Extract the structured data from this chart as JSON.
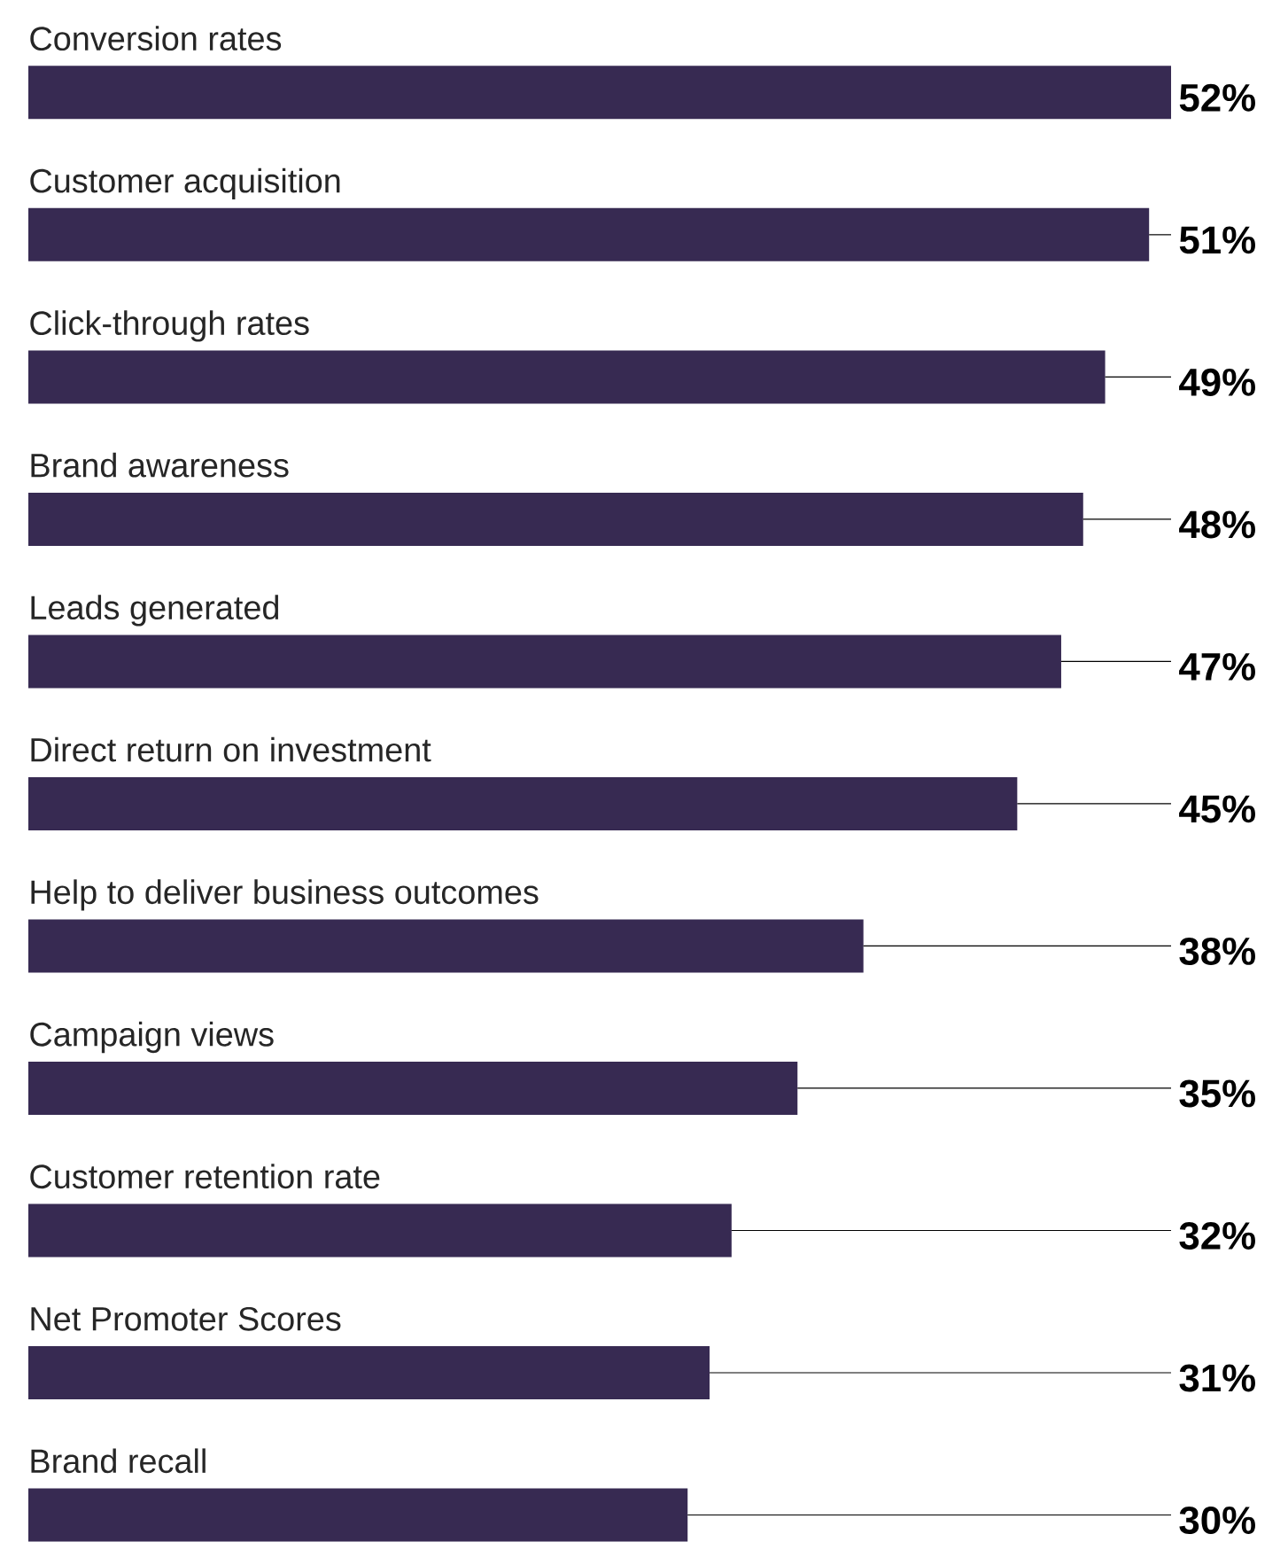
{
  "chart_data": {
    "type": "bar",
    "orientation": "horizontal",
    "color": "#372a52",
    "categories": [
      "Conversion rates",
      "Customer acquisition",
      "Click-through rates",
      "Brand awareness",
      "Leads generated",
      "Direct return on investment",
      "Help to deliver business outcomes",
      "Campaign views",
      "Customer retention rate",
      "Net Promoter Scores",
      "Brand recall"
    ],
    "values": [
      52,
      51,
      49,
      48,
      47,
      45,
      38,
      35,
      32,
      31,
      30
    ],
    "value_labels": [
      "52%",
      "51%",
      "49%",
      "48%",
      "47%",
      "45%",
      "38%",
      "35%",
      "32%",
      "31%",
      "30%"
    ]
  }
}
